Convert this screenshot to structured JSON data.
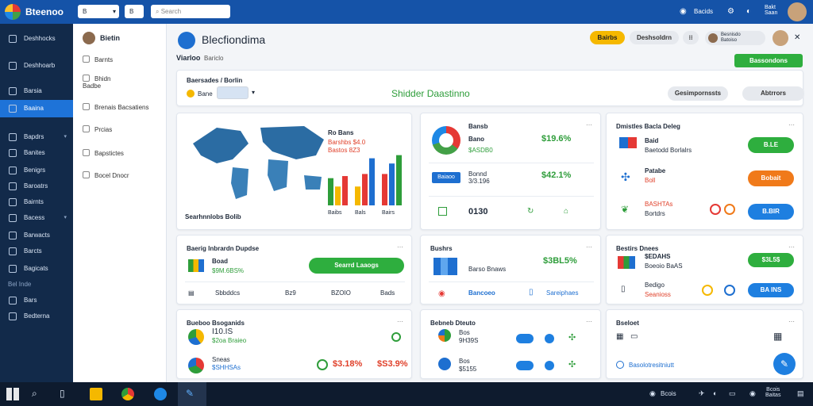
{
  "app": {
    "name": "Bteenoo"
  },
  "topbar": {
    "dropdown1": "B",
    "dropdown2": "B",
    "search_placeholder": "Search",
    "notif_label": "Bacids",
    "right_label": "Bakt\nSaan"
  },
  "nav": {
    "items": [
      {
        "label": "Deshhocks"
      },
      {
        "label": "Deshhoarb"
      },
      {
        "label": "Barsia"
      },
      {
        "label": "Baaina"
      },
      {
        "label": "Bapdrs"
      },
      {
        "label": "Banites"
      },
      {
        "label": "Benigrs"
      },
      {
        "label": "Baroatrs"
      },
      {
        "label": "Bairnts"
      },
      {
        "label": "Bacess"
      },
      {
        "label": "Barwacts"
      },
      {
        "label": "Barcts"
      },
      {
        "label": "Bagicats"
      },
      {
        "label": "Bars"
      },
      {
        "label": "Bedterna"
      }
    ],
    "section": "Bel Inde"
  },
  "panel2": {
    "user": "Bietin",
    "items": [
      "Barnts",
      "Bhidn\nBadbe",
      "Brenais Bacsatiens",
      "Prcias",
      "Bapstictes",
      "Bocel Dnocr"
    ]
  },
  "header": {
    "title": "Blecfiondima",
    "crumb1": "Viarloo",
    "crumb2": "Bariclo",
    "btn_yellow": "Bairbs",
    "btn_grey": "Deshsoldrn",
    "btn_menu": "⁝⁝",
    "user_name": "Besnisdo\nBatoiso",
    "primary_action": "Bassondons"
  },
  "filter": {
    "label": "Baersades / Borlin",
    "select": "Bane",
    "center_title": "Shidder Daastinno",
    "btn1": "Gesimpornssts",
    "btn2": "Abtrrors"
  },
  "map_card": {
    "title": "Ro Bans",
    "lines": [
      "Barshbs $4.0",
      "Bastos 8Z3"
    ],
    "footer": "Searhnnlobs Bolib",
    "bar_labels": [
      "Baibs",
      "Bals",
      "Bairs"
    ],
    "chart_data": {
      "type": "bar",
      "categories": [
        "Baibs",
        "Bals",
        "Bairs"
      ],
      "series": [
        {
          "values": [
            26,
            18,
            28
          ]
        },
        {
          "values": [
            18,
            30,
            45
          ]
        },
        {
          "values": [
            30,
            40,
            48
          ]
        }
      ],
      "ylim": [
        0,
        50
      ]
    }
  },
  "donut_card": {
    "title": "Bansb",
    "rows": [
      {
        "name": "Bano",
        "value": "$ASDB0",
        "change": "$19.6%"
      },
      {
        "name": "Bonnd\n3/3.196",
        "value": "",
        "change": "$42.1%"
      },
      {
        "name": "",
        "value": "0130",
        "change": ""
      }
    ],
    "badge": "Baiaoo"
  },
  "list_card": {
    "title": "Dmistles Bacla Deleg",
    "items": [
      {
        "name": "Baid",
        "sub": "Baetodd Borlalrs",
        "btn": "B.LE"
      },
      {
        "name": "Patabe",
        "sub": "Boll",
        "btn": "Bobait"
      },
      {
        "name": "BASHTAs",
        "sub": "Bortdrs",
        "btn": "B.BIR"
      }
    ]
  },
  "card4": {
    "title": "Baerig Inbrardn Dupdse",
    "item": "Boad",
    "sub": "$9M.6BS%",
    "btn": "Searrd Laaogs",
    "row": [
      "Sbbddcs",
      "Bz9",
      "BZOIO",
      "Bads"
    ]
  },
  "card5": {
    "title": "Bushrs",
    "item1": "$3BL5%",
    "sub1": "Barso Bnaws",
    "item2": "Bancoeo",
    "item3": "Sareiphaes"
  },
  "card6": {
    "title": "Bestirs Dnees",
    "item1": "$EDAHS",
    "sub1": "Boeoio BaAS",
    "btn1": "$3L5$",
    "item2": "Bedigo",
    "sub2": "Seanioss",
    "btn2": "BA INS"
  },
  "card7": {
    "title": "Bueboo Bsoganids",
    "item1": "I10.IS",
    "sub1": "$2oa Braieo",
    "item2": "Sneas",
    "sub2": "$SHHSAs",
    "p1": "$3.18%",
    "p2": "$S3.9%"
  },
  "card8": {
    "title": "Bebneb Dteuto",
    "r1": "Bos\n9H39S",
    "r2": "Bos\n$5155"
  },
  "card9": {
    "title": "Bseloet",
    "item": "Basolotresitniutt"
  },
  "taskbar": {
    "time": "Bcois",
    "date": "Baitas"
  }
}
